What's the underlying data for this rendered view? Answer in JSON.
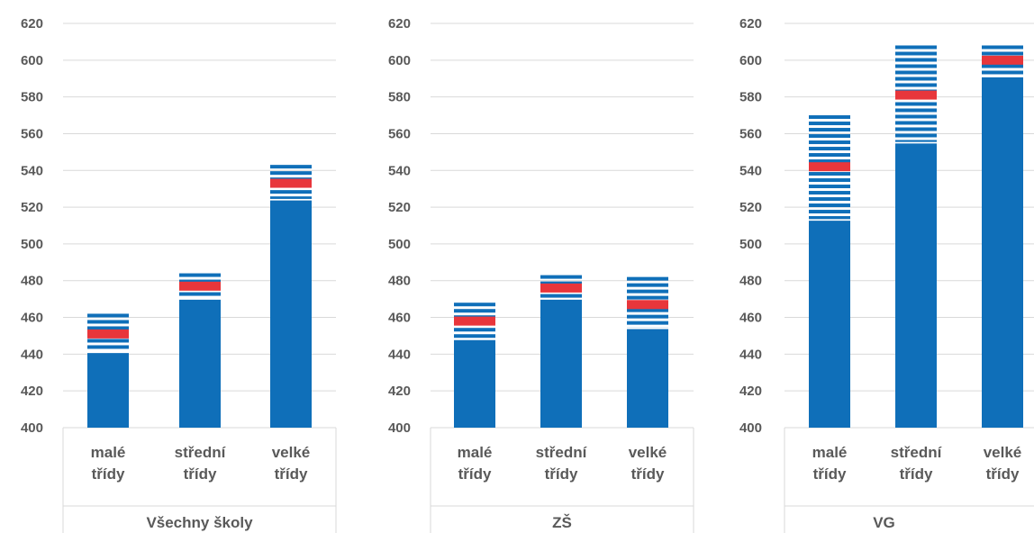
{
  "chart_data": [
    {
      "type": "bar",
      "group_label": "Všechny školy",
      "categories": [
        [
          "malé",
          "třídy"
        ],
        [
          "střední",
          "třídy"
        ],
        [
          "velké",
          "třídy"
        ]
      ],
      "series": [
        {
          "name": "",
          "values": [
            441,
            470,
            524
          ]
        },
        {
          "name": "",
          "values": [
            451,
            477,
            533
          ]
        },
        {
          "name": "",
          "values": [
            462,
            484,
            543
          ]
        }
      ],
      "ylim": [
        400,
        620
      ],
      "yticks": [
        400,
        420,
        440,
        460,
        480,
        500,
        520,
        540,
        560,
        580,
        600,
        620
      ],
      "grid": true
    },
    {
      "type": "bar",
      "group_label": "ZŠ",
      "categories": [
        [
          "malé",
          "třídy"
        ],
        [
          "střední",
          "třídy"
        ],
        [
          "velké",
          "třídy"
        ]
      ],
      "series": [
        {
          "name": "",
          "values": [
            448,
            470,
            454
          ]
        },
        {
          "name": "",
          "values": [
            458,
            476,
            467
          ]
        },
        {
          "name": "",
          "values": [
            468,
            483,
            482
          ]
        }
      ],
      "ylim": [
        400,
        620
      ],
      "yticks": [
        400,
        420,
        440,
        460,
        480,
        500,
        520,
        540,
        560,
        580,
        600,
        620
      ],
      "grid": true
    },
    {
      "type": "bar",
      "group_label": "VG",
      "categories": [
        [
          "malé",
          "třídy"
        ],
        [
          "střední",
          "třídy"
        ],
        [
          "velké",
          "třídy"
        ]
      ],
      "series": [
        {
          "name": "",
          "values": [
            513,
            555,
            591
          ]
        },
        {
          "name": "",
          "values": [
            542,
            581,
            600
          ]
        },
        {
          "name": "",
          "values": [
            570,
            608,
            608
          ]
        }
      ],
      "ylim": [
        400,
        620
      ],
      "yticks": [
        400,
        420,
        440,
        460,
        480,
        500,
        520,
        540,
        560,
        580,
        600,
        620
      ],
      "grid": true
    }
  ],
  "colors": {
    "bar": "#0F6FB9",
    "estimate": "#E8363B",
    "grid": "#D9D9D9",
    "axis_text": "#595959",
    "stripe_gap": "#FFFFFF"
  }
}
